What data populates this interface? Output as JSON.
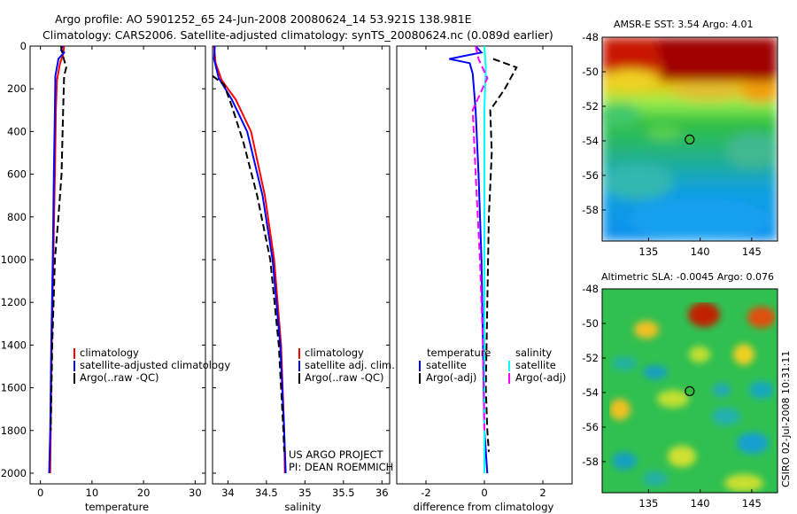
{
  "header": {
    "line1": "Argo profile: AO 5901252_65 24-Jun-2008 20080624_14 53.921S 138.981E",
    "line2": "Climatology: CARS2006. Satellite-adjusted climatology: synTS_20080624.nc (0.089d earlier)"
  },
  "colors": {
    "climatology": "#ff0000",
    "satellite": "#0000ff",
    "argo": "#000000",
    "salinity_satellite": "#00ffff",
    "salinity_argo": "#ff00ff"
  },
  "credit": {
    "line1": "US ARGO PROJECT",
    "line2": "PI: DEAN ROEMMICH"
  },
  "footer": {
    "stamp": "CSIRO 02-Jul-2008 10:31:11"
  },
  "chart_data": [
    {
      "type": "line",
      "id": "temperature",
      "xlabel": "temperature",
      "ylabel": "",
      "xlim": [
        -2,
        32
      ],
      "ylim": [
        0,
        2050
      ],
      "y_reversed": true,
      "xticks": [
        0,
        10,
        20,
        30
      ],
      "yticks": [
        0,
        200,
        400,
        600,
        800,
        1000,
        1200,
        1400,
        1600,
        1800,
        2000
      ],
      "legend": [
        "climatology",
        "satellite-adjusted climatology",
        "Argo(..raw -QC)"
      ],
      "series": [
        {
          "name": "climatology",
          "color": "#ff0000",
          "style": "solid",
          "points": [
            [
              4.6,
              0
            ],
            [
              4.4,
              40
            ],
            [
              3.8,
              80
            ],
            [
              3.2,
              160
            ],
            [
              3.0,
              300
            ],
            [
              2.8,
              600
            ],
            [
              2.5,
              1000
            ],
            [
              2.2,
              1400
            ],
            [
              2.0,
              1800
            ],
            [
              1.9,
              2000
            ]
          ]
        },
        {
          "name": "satellite-adjusted climatology",
          "color": "#0000ff",
          "style": "solid",
          "points": [
            [
              4.3,
              0
            ],
            [
              4.0,
              20
            ],
            [
              4.6,
              30
            ],
            [
              3.5,
              60
            ],
            [
              2.9,
              140
            ],
            [
              2.8,
              300
            ],
            [
              2.6,
              600
            ],
            [
              2.4,
              1000
            ],
            [
              2.1,
              1400
            ],
            [
              1.9,
              1800
            ],
            [
              1.7,
              2000
            ]
          ]
        },
        {
          "name": "Argo(..raw -QC)",
          "color": "#000000",
          "style": "dashed",
          "points": [
            [
              4.0,
              0
            ],
            [
              4.3,
              40
            ],
            [
              5.0,
              100
            ],
            [
              4.6,
              140
            ],
            [
              4.4,
              300
            ],
            [
              4.1,
              600
            ],
            [
              3.5,
              800
            ],
            [
              2.8,
              1000
            ],
            [
              2.3,
              1400
            ],
            [
              2.0,
              1800
            ]
          ]
        }
      ]
    },
    {
      "type": "line",
      "id": "salinity",
      "xlabel": "salinity",
      "ylabel": "",
      "xlim": [
        33.8,
        36.1
      ],
      "ylim": [
        0,
        2050
      ],
      "y_reversed": true,
      "xticks": [
        34,
        34.5,
        35,
        35.5,
        36
      ],
      "yticks": [
        0,
        200,
        400,
        600,
        800,
        1000,
        1200,
        1400,
        1600,
        1800,
        2000
      ],
      "legend": [
        "climatology",
        "satellite adj. clim.",
        "Argo(..raw -QC)"
      ],
      "series": [
        {
          "name": "climatology",
          "color": "#ff0000",
          "style": "solid",
          "points": [
            [
              33.82,
              0
            ],
            [
              33.84,
              80
            ],
            [
              33.92,
              160
            ],
            [
              34.1,
              250
            ],
            [
              34.3,
              400
            ],
            [
              34.48,
              700
            ],
            [
              34.6,
              1000
            ],
            [
              34.69,
              1400
            ],
            [
              34.73,
              1800
            ],
            [
              34.74,
              2000
            ]
          ]
        },
        {
          "name": "satellite adj. clim.",
          "color": "#0000ff",
          "style": "solid",
          "points": [
            [
              33.83,
              0
            ],
            [
              33.82,
              60
            ],
            [
              33.88,
              150
            ],
            [
              34.05,
              250
            ],
            [
              34.25,
              400
            ],
            [
              34.45,
              700
            ],
            [
              34.58,
              1000
            ],
            [
              34.68,
              1400
            ],
            [
              34.73,
              1800
            ],
            [
              34.75,
              2000
            ]
          ]
        },
        {
          "name": "Argo(..raw -QC)",
          "color": "#000000",
          "style": "dashed",
          "points": [
            [
              33.8,
              140
            ],
            [
              33.95,
              180
            ],
            [
              34.05,
              280
            ],
            [
              34.2,
              450
            ],
            [
              34.38,
              700
            ],
            [
              34.55,
              1000
            ],
            [
              34.66,
              1400
            ],
            [
              34.72,
              1800
            ],
            [
              34.73,
              1900
            ]
          ]
        }
      ]
    },
    {
      "type": "line",
      "id": "difference",
      "xlabel": "difference from climatology",
      "ylabel": "",
      "xlim": [
        -3,
        3
      ],
      "ylim": [
        0,
        2050
      ],
      "y_reversed": true,
      "xticks": [
        -2,
        0,
        2
      ],
      "yticks": [
        0,
        200,
        400,
        600,
        800,
        1000,
        1200,
        1400,
        1600,
        1800,
        2000
      ],
      "legend_groups": [
        {
          "title": "temperature",
          "items": [
            "satellite",
            "Argo(-adj)"
          ]
        },
        {
          "title": "salinity",
          "items": [
            "satellite",
            "Argo(-adj)"
          ]
        }
      ],
      "series": [
        {
          "name": "temperature satellite",
          "color": "#0000ff",
          "style": "solid",
          "points": [
            [
              -0.3,
              0
            ],
            [
              -0.1,
              30
            ],
            [
              -1.2,
              60
            ],
            [
              -0.5,
              80
            ],
            [
              -0.4,
              130
            ],
            [
              -0.3,
              300
            ],
            [
              -0.2,
              600
            ],
            [
              -0.1,
              1000
            ],
            [
              -0.05,
              1400
            ],
            [
              0.0,
              1800
            ],
            [
              0.1,
              2000
            ]
          ]
        },
        {
          "name": "temperature Argo(-adj)",
          "color": "#000000",
          "style": "dashed",
          "points": [
            [
              0.3,
              60
            ],
            [
              1.1,
              100
            ],
            [
              0.7,
              200
            ],
            [
              0.2,
              300
            ],
            [
              0.25,
              500
            ],
            [
              0.15,
              800
            ],
            [
              0.1,
              1200
            ],
            [
              0.05,
              1600
            ],
            [
              0.1,
              1800
            ],
            [
              0.15,
              1900
            ]
          ]
        },
        {
          "name": "salinity satellite",
          "color": "#00ffff",
          "style": "solid",
          "points": [
            [
              0.0,
              0
            ],
            [
              0.05,
              100
            ],
            [
              0.0,
              300
            ],
            [
              0.0,
              1000
            ],
            [
              0.0,
              2000
            ]
          ]
        },
        {
          "name": "salinity Argo(-adj)",
          "color": "#ff00ff",
          "style": "dashed",
          "points": [
            [
              -0.3,
              0
            ],
            [
              -0.2,
              60
            ],
            [
              0.1,
              150
            ],
            [
              -0.4,
              300
            ],
            [
              -0.3,
              600
            ],
            [
              -0.15,
              1000
            ],
            [
              -0.05,
              1400
            ],
            [
              0.0,
              1800
            ]
          ]
        }
      ]
    },
    {
      "type": "heatmap",
      "id": "sst",
      "title": "AMSR-E SST: 3.54 Argo: 4.01",
      "xlim": [
        130.5,
        147.5
      ],
      "ylim": [
        -59.8,
        -48
      ],
      "xticks": [
        135,
        140,
        145
      ],
      "yticks": [
        -48,
        -50,
        -52,
        -54,
        -56,
        -58
      ],
      "marker": [
        138.981,
        -53.921
      ]
    },
    {
      "type": "heatmap",
      "id": "sla",
      "title": "Altimetric SLA: -0.0045 Argo: 0.076",
      "xlim": [
        130.5,
        147.5
      ],
      "ylim": [
        -59.8,
        -48
      ],
      "xticks": [
        135,
        140,
        145
      ],
      "yticks": [
        -48,
        -50,
        -52,
        -54,
        -56,
        -58
      ],
      "marker": [
        138.981,
        -53.921
      ]
    }
  ]
}
